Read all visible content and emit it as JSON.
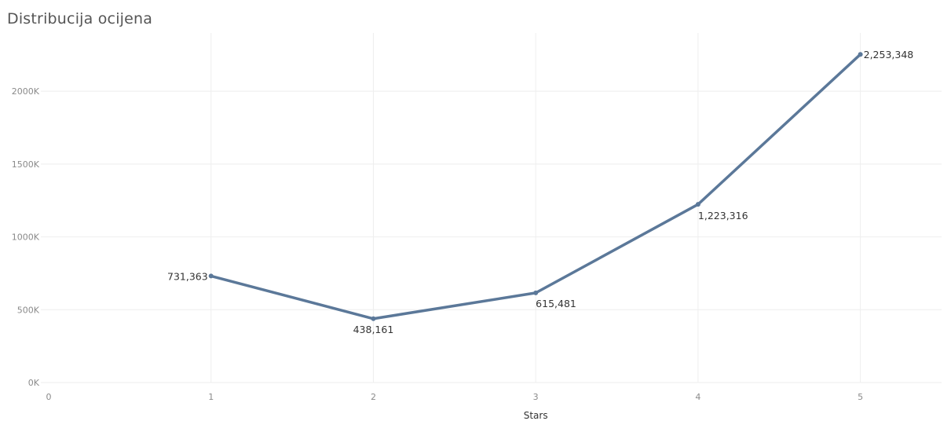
{
  "title": "Distribucija ocijena",
  "chart_data": {
    "type": "line",
    "title": "Distribucija ocijena",
    "xlabel": "Stars",
    "ylabel": "",
    "x": [
      1,
      2,
      3,
      4,
      5
    ],
    "xlim": [
      0,
      5.5
    ],
    "ylim": [
      0,
      2400000
    ],
    "x_ticks": [
      0,
      1,
      2,
      3,
      4,
      5
    ],
    "x_tick_labels": [
      "0",
      "1",
      "2",
      "3",
      "4",
      "5"
    ],
    "y_ticks": [
      0,
      500000,
      1000000,
      1500000,
      2000000
    ],
    "y_tick_labels": [
      "0K",
      "500K",
      "1000K",
      "1500K",
      "2000K"
    ],
    "grid": true,
    "series": [
      {
        "name": "",
        "color": "#5b7899",
        "values": [
          731363,
          438161,
          615481,
          1223316,
          2253348
        ],
        "labels": [
          "731,363",
          "438,161",
          "615,481",
          "1,223,316",
          "2,253,348"
        ]
      }
    ]
  }
}
